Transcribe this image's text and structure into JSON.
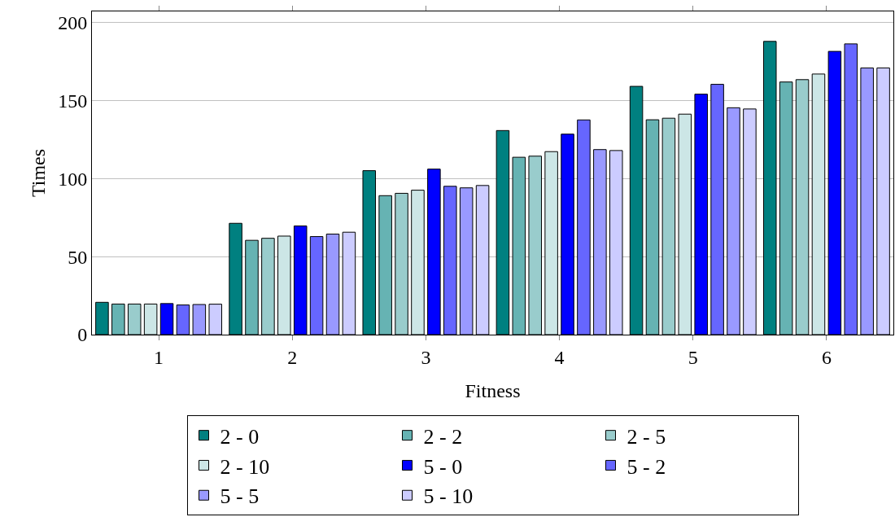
{
  "chart_data": {
    "type": "bar",
    "xlabel": "Fitness",
    "ylabel": "Times",
    "categories": [
      "1",
      "2",
      "3",
      "4",
      "5",
      "6"
    ],
    "series": [
      {
        "name": "2 - 0",
        "color": "#008080",
        "values": [
          20.7,
          71.3,
          105,
          130.7,
          159,
          187.8
        ]
      },
      {
        "name": "2 - 2",
        "color": "#66b3b3",
        "values": [
          19.6,
          60.4,
          89,
          113.6,
          137.6,
          161.8
        ]
      },
      {
        "name": "2 - 5",
        "color": "#99cccc",
        "values": [
          19.6,
          61.7,
          90.5,
          114.3,
          138.6,
          163.3
        ]
      },
      {
        "name": "2 - 10",
        "color": "#cce6e6",
        "values": [
          19.6,
          63.1,
          92.5,
          117.2,
          141.2,
          166.9
        ]
      },
      {
        "name": "5 - 0",
        "color": "#0000ff",
        "values": [
          19.9,
          69.6,
          106,
          128.4,
          154,
          181.4
        ]
      },
      {
        "name": "5 - 2",
        "color": "#6666ff",
        "values": [
          19,
          62.8,
          95,
          137.5,
          160.3,
          186.2
        ]
      },
      {
        "name": "5 - 5",
        "color": "#9999ff",
        "values": [
          19.3,
          64.4,
          94,
          118.5,
          145.3,
          170.8
        ]
      },
      {
        "name": "5 - 10",
        "color": "#ccccff",
        "values": [
          19.5,
          65.6,
          95.5,
          117.9,
          144.5,
          170.8
        ]
      }
    ],
    "ylim": [
      0,
      207
    ],
    "yticks": [
      0,
      50,
      100,
      150,
      200
    ],
    "grid": "y",
    "legend": "bottom"
  }
}
